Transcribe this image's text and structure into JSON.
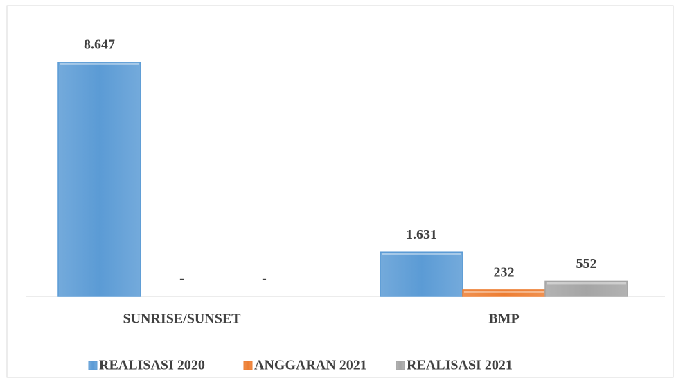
{
  "chart_data": {
    "type": "bar",
    "categories": [
      "SUNRISE/SUNSET",
      "BMP"
    ],
    "series": [
      {
        "name": "REALISASI 2020",
        "color": "#5b9bd5",
        "values": [
          8647,
          1631
        ],
        "value_labels": [
          "8.647",
          "1.631"
        ]
      },
      {
        "name": "ANGGARAN 2021",
        "color": "#ed7d31",
        "values": [
          0,
          232
        ],
        "value_labels": [
          "-",
          "232"
        ]
      },
      {
        "name": "REALISASI 2021",
        "color": "#a5a5a5",
        "values": [
          0,
          552
        ],
        "value_labels": [
          "-",
          "552"
        ]
      }
    ],
    "ylim": [
      0,
      10000
    ],
    "grid": false,
    "legend": "bottom"
  }
}
